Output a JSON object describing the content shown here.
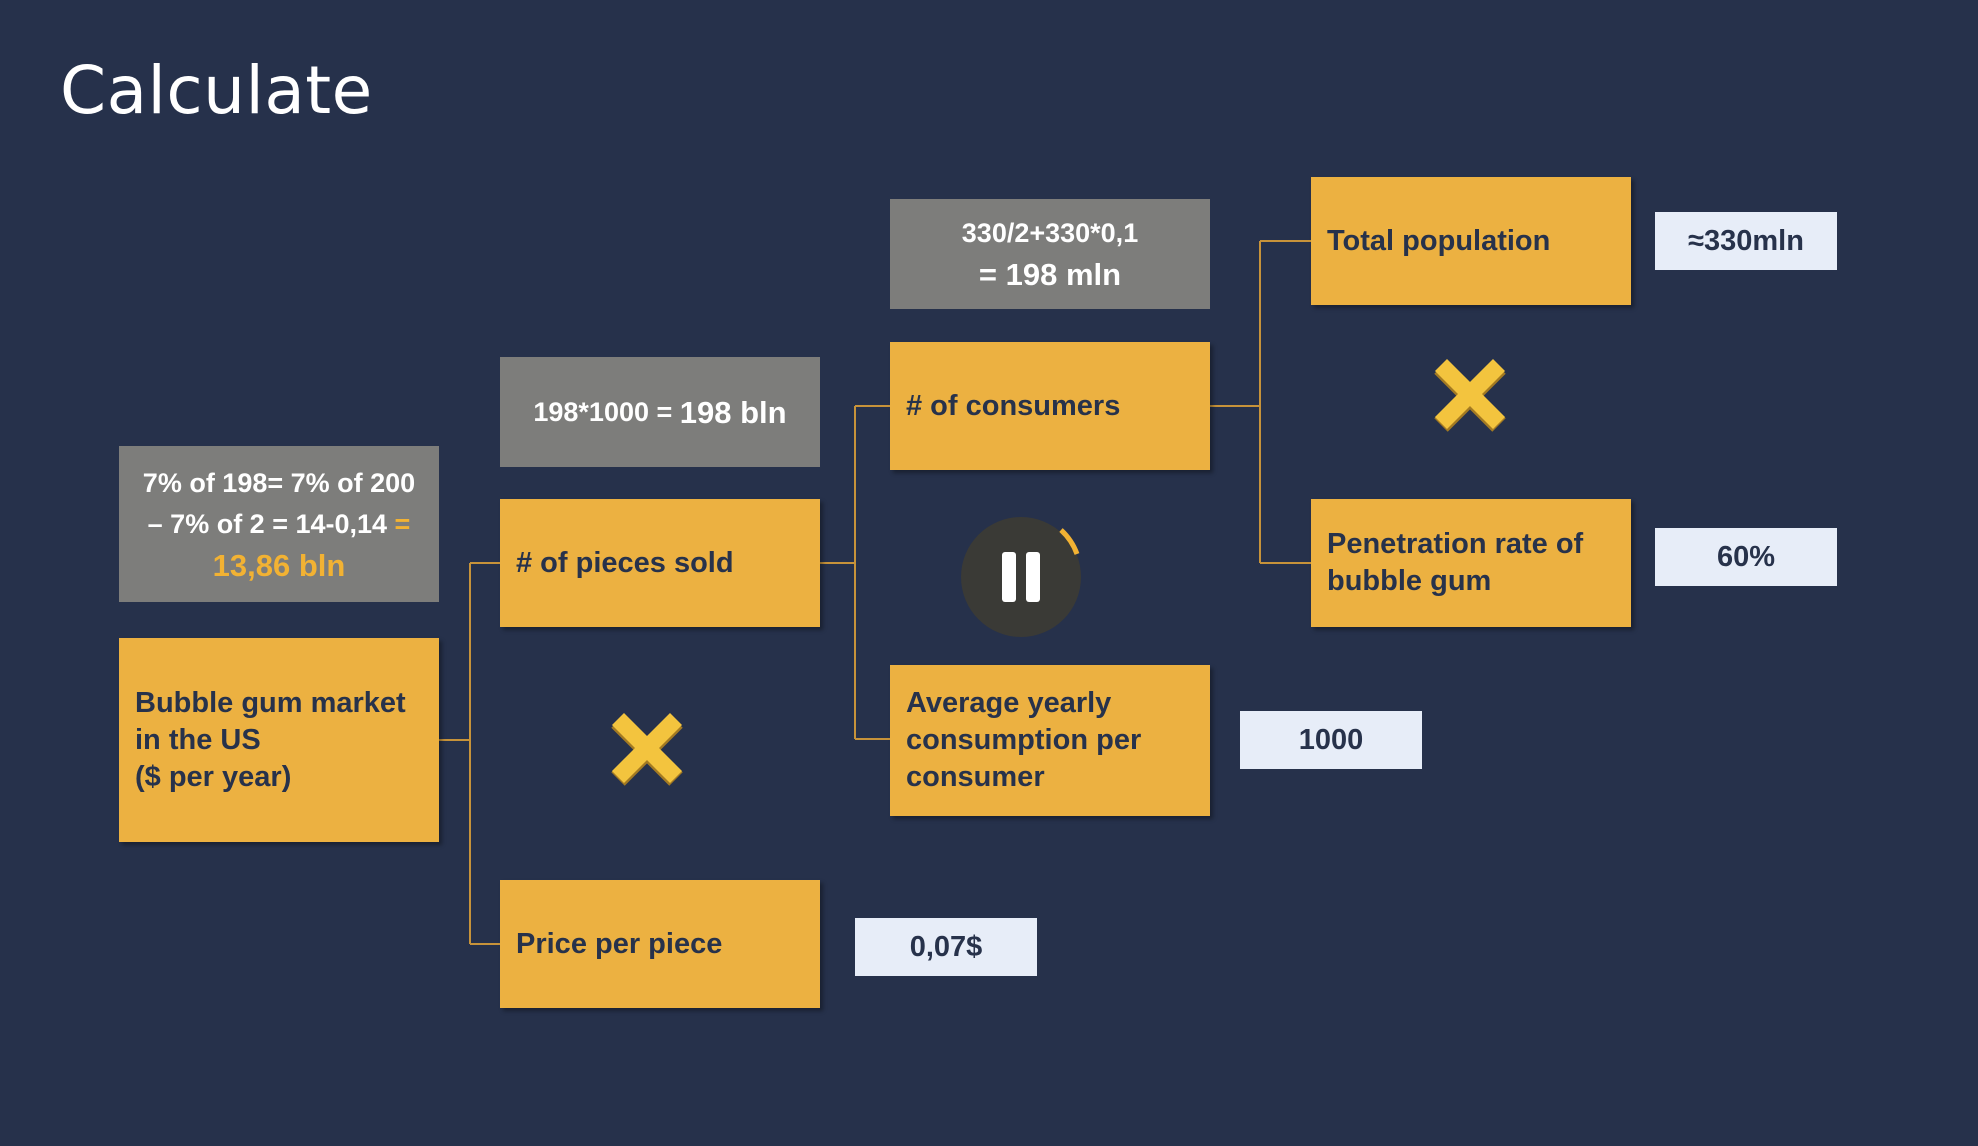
{
  "title": "Calculate",
  "nodes": {
    "market": [
      "Bubble gum market",
      "in the US",
      "($ per year)"
    ],
    "pieces_sold": "# of pieces sold",
    "price_per_piece": "Price per piece",
    "consumers": "# of consumers",
    "avg_consumption": [
      "Average yearly",
      "consumption per",
      "consumer"
    ],
    "total_population": "Total population",
    "penetration": [
      "Penetration rate of",
      "bubble gum"
    ]
  },
  "calculations": {
    "market": {
      "line1": "7% of 198= 7% of 200",
      "line2_a": "– 7% of 2 = 14-0,14 ",
      "line2_b": "=",
      "line3": "13,86 bln"
    },
    "pieces_sold": {
      "a": "198*1000 = ",
      "b": "198 bln"
    },
    "consumers": {
      "line1": "330/2+330*0,1",
      "line2": "= 198 mln"
    }
  },
  "values": {
    "total_population": "≈330mln",
    "penetration": "60%",
    "avg_consumption": "1000",
    "price_per_piece": "0,07$"
  },
  "colors": {
    "background": "#26314b",
    "box": "#ecb141",
    "calc_box": "#7d7d7b",
    "value_box": "#e7edf8",
    "highlight": "#f2b233",
    "connector": "#c7933a"
  },
  "icons": [
    "multiply-icon",
    "pause-icon"
  ]
}
